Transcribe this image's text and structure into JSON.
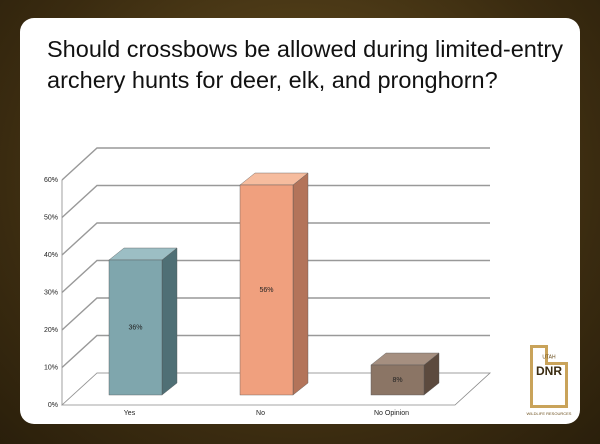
{
  "chart_data": {
    "type": "bar3d",
    "title": "Should crossbows be allowed during limited-entry archery hunts for deer, elk, and pronghorn?",
    "categories": [
      "Yes",
      "No",
      "No Opinion"
    ],
    "values": [
      36,
      56,
      8
    ],
    "value_labels": [
      "36%",
      "56%",
      "8%"
    ],
    "colors": [
      [
        "#7fa6ad",
        "#9cbec4",
        "#4f6f75"
      ],
      [
        "#f0a07e",
        "#f6bc9e",
        "#b3745a"
      ],
      [
        "#8b7565",
        "#a58f80",
        "#5c4a3e"
      ]
    ],
    "ylim": [
      0,
      60
    ],
    "yticks": [
      {
        "value": 0,
        "label": "0%"
      },
      {
        "value": 10,
        "label": "10%"
      },
      {
        "value": 20,
        "label": "20%"
      },
      {
        "value": 30,
        "label": "30%"
      },
      {
        "value": 40,
        "label": "40%"
      },
      {
        "value": 50,
        "label": "50%"
      },
      {
        "value": 60,
        "label": "60%"
      }
    ],
    "grid": true
  },
  "logo": {
    "top": "UTAH",
    "main": "DNR",
    "bottom": "WILDLIFE RESOURCES"
  }
}
